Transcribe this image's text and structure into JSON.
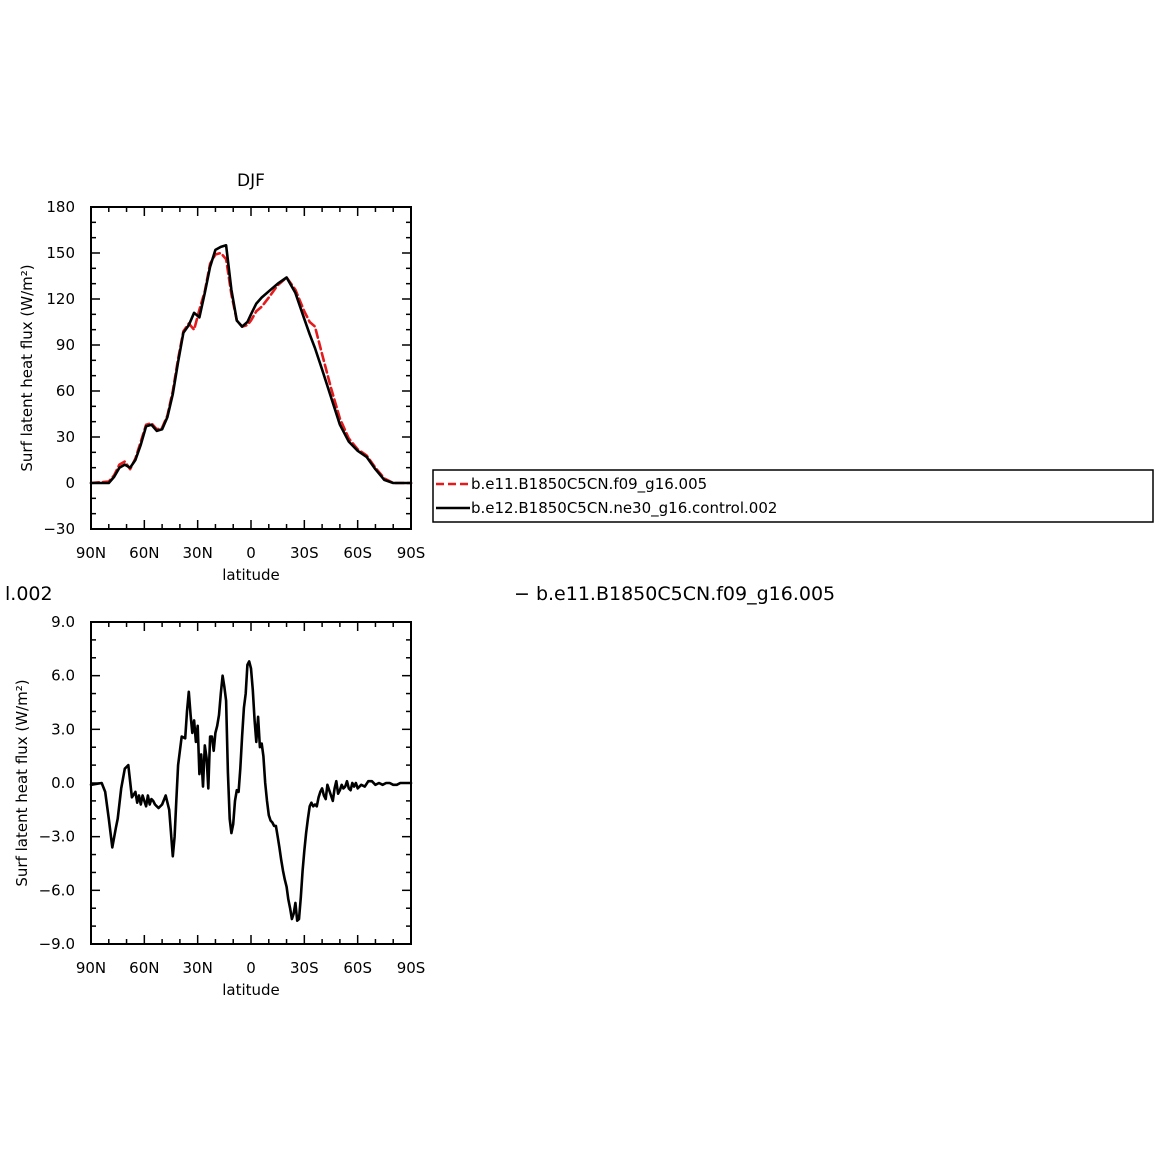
{
  "header": {
    "left_fragment": "l.002",
    "right_fragment": "− b.e11.B1850C5CN.f09_g16.005"
  },
  "chart_data": [
    {
      "type": "line",
      "title": "DJF",
      "xlabel": "latitude",
      "ylabel": "Surf latent heat flux (W/m²)",
      "xlim": [
        -90,
        90
      ],
      "ylim": [
        -30,
        180
      ],
      "x_ticks": [
        -90,
        -60,
        -30,
        0,
        30,
        60,
        90
      ],
      "x_tick_labels": [
        "90N",
        "60N",
        "30N",
        "0",
        "30S",
        "60S",
        "90S"
      ],
      "y_ticks": [
        -30,
        0,
        30,
        60,
        90,
        120,
        150,
        180
      ],
      "y_tick_labels": [
        "−30",
        "0",
        "30",
        "60",
        "90",
        "120",
        "150",
        "180"
      ],
      "grid": false,
      "legend_position": "right",
      "series": [
        {
          "name": "b.e11.B1850C5CN.f09_g16.005",
          "color": "#e41a1c",
          "dash": "dashed",
          "x": [
            -90,
            -80,
            -77,
            -74,
            -71,
            -68,
            -65,
            -62,
            -59,
            -56,
            -53,
            -50,
            -47,
            -44,
            -41,
            -38,
            -35,
            -32,
            -29,
            -26,
            -23,
            -20,
            -17,
            -14,
            -11,
            -8,
            -5,
            -2,
            0,
            3,
            6,
            10,
            15,
            20,
            25,
            30,
            33,
            36,
            40,
            45,
            50,
            55,
            60,
            65,
            70,
            75,
            80,
            85,
            90
          ],
          "y": [
            0,
            1,
            5,
            12,
            14,
            9,
            16,
            27,
            38,
            39,
            35,
            36,
            44,
            60,
            81,
            99,
            104,
            100,
            113,
            125,
            143,
            149,
            150,
            146,
            123,
            106,
            102,
            103,
            106,
            112,
            115,
            121,
            129,
            134,
            126,
            112,
            105,
            102,
            84,
            62,
            42,
            29,
            22,
            18,
            10,
            3,
            0,
            0,
            0
          ]
        },
        {
          "name": "b.e12.B1850C5CN.ne30_g16.control.002",
          "color": "#000000",
          "dash": "solid",
          "x": [
            -90,
            -80,
            -77,
            -74,
            -71,
            -68,
            -65,
            -62,
            -59,
            -56,
            -53,
            -50,
            -47,
            -44,
            -41,
            -38,
            -35,
            -32,
            -29,
            -26,
            -23,
            -20,
            -17,
            -14,
            -11,
            -8,
            -5,
            -2,
            0,
            3,
            6,
            10,
            15,
            20,
            25,
            30,
            33,
            36,
            40,
            45,
            50,
            55,
            60,
            65,
            70,
            75,
            80,
            85,
            90
          ],
          "y": [
            0,
            0,
            4,
            10,
            12,
            10,
            15,
            25,
            37,
            38,
            34,
            35,
            43,
            58,
            79,
            98,
            103,
            111,
            108,
            124,
            141,
            152,
            154,
            155,
            126,
            106,
            102,
            105,
            110,
            117,
            121,
            125,
            130,
            134,
            124,
            107,
            97,
            88,
            74,
            56,
            38,
            27,
            21,
            17,
            9,
            2,
            0,
            0,
            0
          ]
        }
      ]
    },
    {
      "type": "line",
      "title": "",
      "xlabel": "latitude",
      "ylabel": "Surf latent heat flux (W/m²)",
      "xlim": [
        -90,
        90
      ],
      "ylim": [
        -9,
        9
      ],
      "x_ticks": [
        -90,
        -60,
        -30,
        0,
        30,
        60,
        90
      ],
      "x_tick_labels": [
        "90N",
        "60N",
        "30N",
        "0",
        "30S",
        "60S",
        "90S"
      ],
      "y_ticks": [
        -9,
        -6,
        -3,
        0,
        3,
        6,
        9
      ],
      "y_tick_labels": [
        "−9.0",
        "−6.0",
        "−3.0",
        "0.0",
        "3.0",
        "6.0",
        "9.0"
      ],
      "grid": false,
      "series": [
        {
          "color": "#000000",
          "dash": "solid",
          "x": [
            -90,
            -84,
            -82,
            -80,
            -78,
            -76,
            -75,
            -73,
            -71,
            -69,
            -67,
            -65,
            -64,
            -63,
            -62,
            -61,
            -60,
            -59,
            -58,
            -57,
            -56,
            -55,
            -54,
            -53,
            -52,
            -50,
            -48,
            -46,
            -44,
            -43,
            -42,
            -41,
            -39,
            -37,
            -36,
            -35,
            -34,
            -33,
            -32,
            -31,
            -30,
            -29,
            -28,
            -27,
            -26,
            -25,
            -24,
            -23,
            -22,
            -21,
            -20,
            -19,
            -18,
            -17,
            -16,
            -15,
            -14,
            -13,
            -12,
            -11,
            -10,
            -9,
            -8,
            -7,
            -6,
            -5,
            -4,
            -3,
            -2,
            -1,
            0,
            1,
            2,
            3,
            4,
            5,
            6,
            7,
            8,
            9,
            10,
            11,
            12,
            13,
            14,
            15,
            16,
            17,
            18,
            19,
            20,
            21,
            22,
            23,
            24,
            25,
            26,
            27,
            28,
            29,
            30,
            31,
            32,
            33,
            34,
            35,
            36,
            37,
            38,
            39,
            40,
            41,
            42,
            43,
            44,
            45,
            46,
            47,
            48,
            49,
            50,
            51,
            52,
            53,
            54,
            55,
            56,
            57,
            58,
            59,
            60,
            62,
            64,
            66,
            68,
            70,
            72,
            74,
            76,
            78,
            80,
            82,
            84,
            86,
            88,
            90
          ],
          "y": [
            -0.1,
            0,
            -0.5,
            -2,
            -3.6,
            -2.5,
            -2,
            -0.3,
            0.8,
            1,
            -0.8,
            -0.5,
            -1.1,
            -0.7,
            -1.2,
            -0.7,
            -1,
            -1.3,
            -0.7,
            -1.2,
            -0.9,
            -1,
            -1.2,
            -1.3,
            -1.4,
            -1.2,
            -0.7,
            -1.5,
            -4.1,
            -3,
            -1,
            1,
            2.6,
            2.5,
            4,
            5.1,
            3.8,
            2.8,
            3.5,
            2.3,
            3.2,
            0.5,
            1.6,
            -0.2,
            2.1,
            1.4,
            -0.3,
            2.6,
            2.6,
            1.8,
            2.8,
            3.2,
            3.8,
            5,
            6,
            5.4,
            4.6,
            0.6,
            -2,
            -2.8,
            -2.3,
            -1,
            -0.4,
            -0.5,
            0.8,
            2.6,
            4.2,
            5,
            6.6,
            6.8,
            6.4,
            5.2,
            3.5,
            2.3,
            3.7,
            2,
            2.2,
            1.5,
            0,
            -1,
            -1.8,
            -2.1,
            -2.2,
            -2.4,
            -2.4,
            -3,
            -3.6,
            -4.3,
            -4.9,
            -5.4,
            -5.8,
            -6.5,
            -7,
            -7.6,
            -7.3,
            -6.7,
            -7.7,
            -7.6,
            -6.4,
            -4.9,
            -3.8,
            -2.8,
            -2,
            -1.3,
            -1.1,
            -1.3,
            -1.2,
            -1.3,
            -0.8,
            -0.5,
            -0.3,
            -0.7,
            -0.9,
            -0.1,
            -0.4,
            -0.7,
            -1,
            -0.3,
            0.1,
            -0.6,
            -0.4,
            -0.1,
            -0.3,
            -0.2,
            0.1,
            -0.3,
            -0.4,
            0,
            -0.2,
            0,
            -0.3,
            -0.1,
            -0.2,
            0.1,
            0.1,
            -0.1,
            0,
            -0.1,
            0,
            0,
            -0.1,
            -0.1,
            0,
            0,
            0,
            0
          ]
        }
      ]
    }
  ]
}
